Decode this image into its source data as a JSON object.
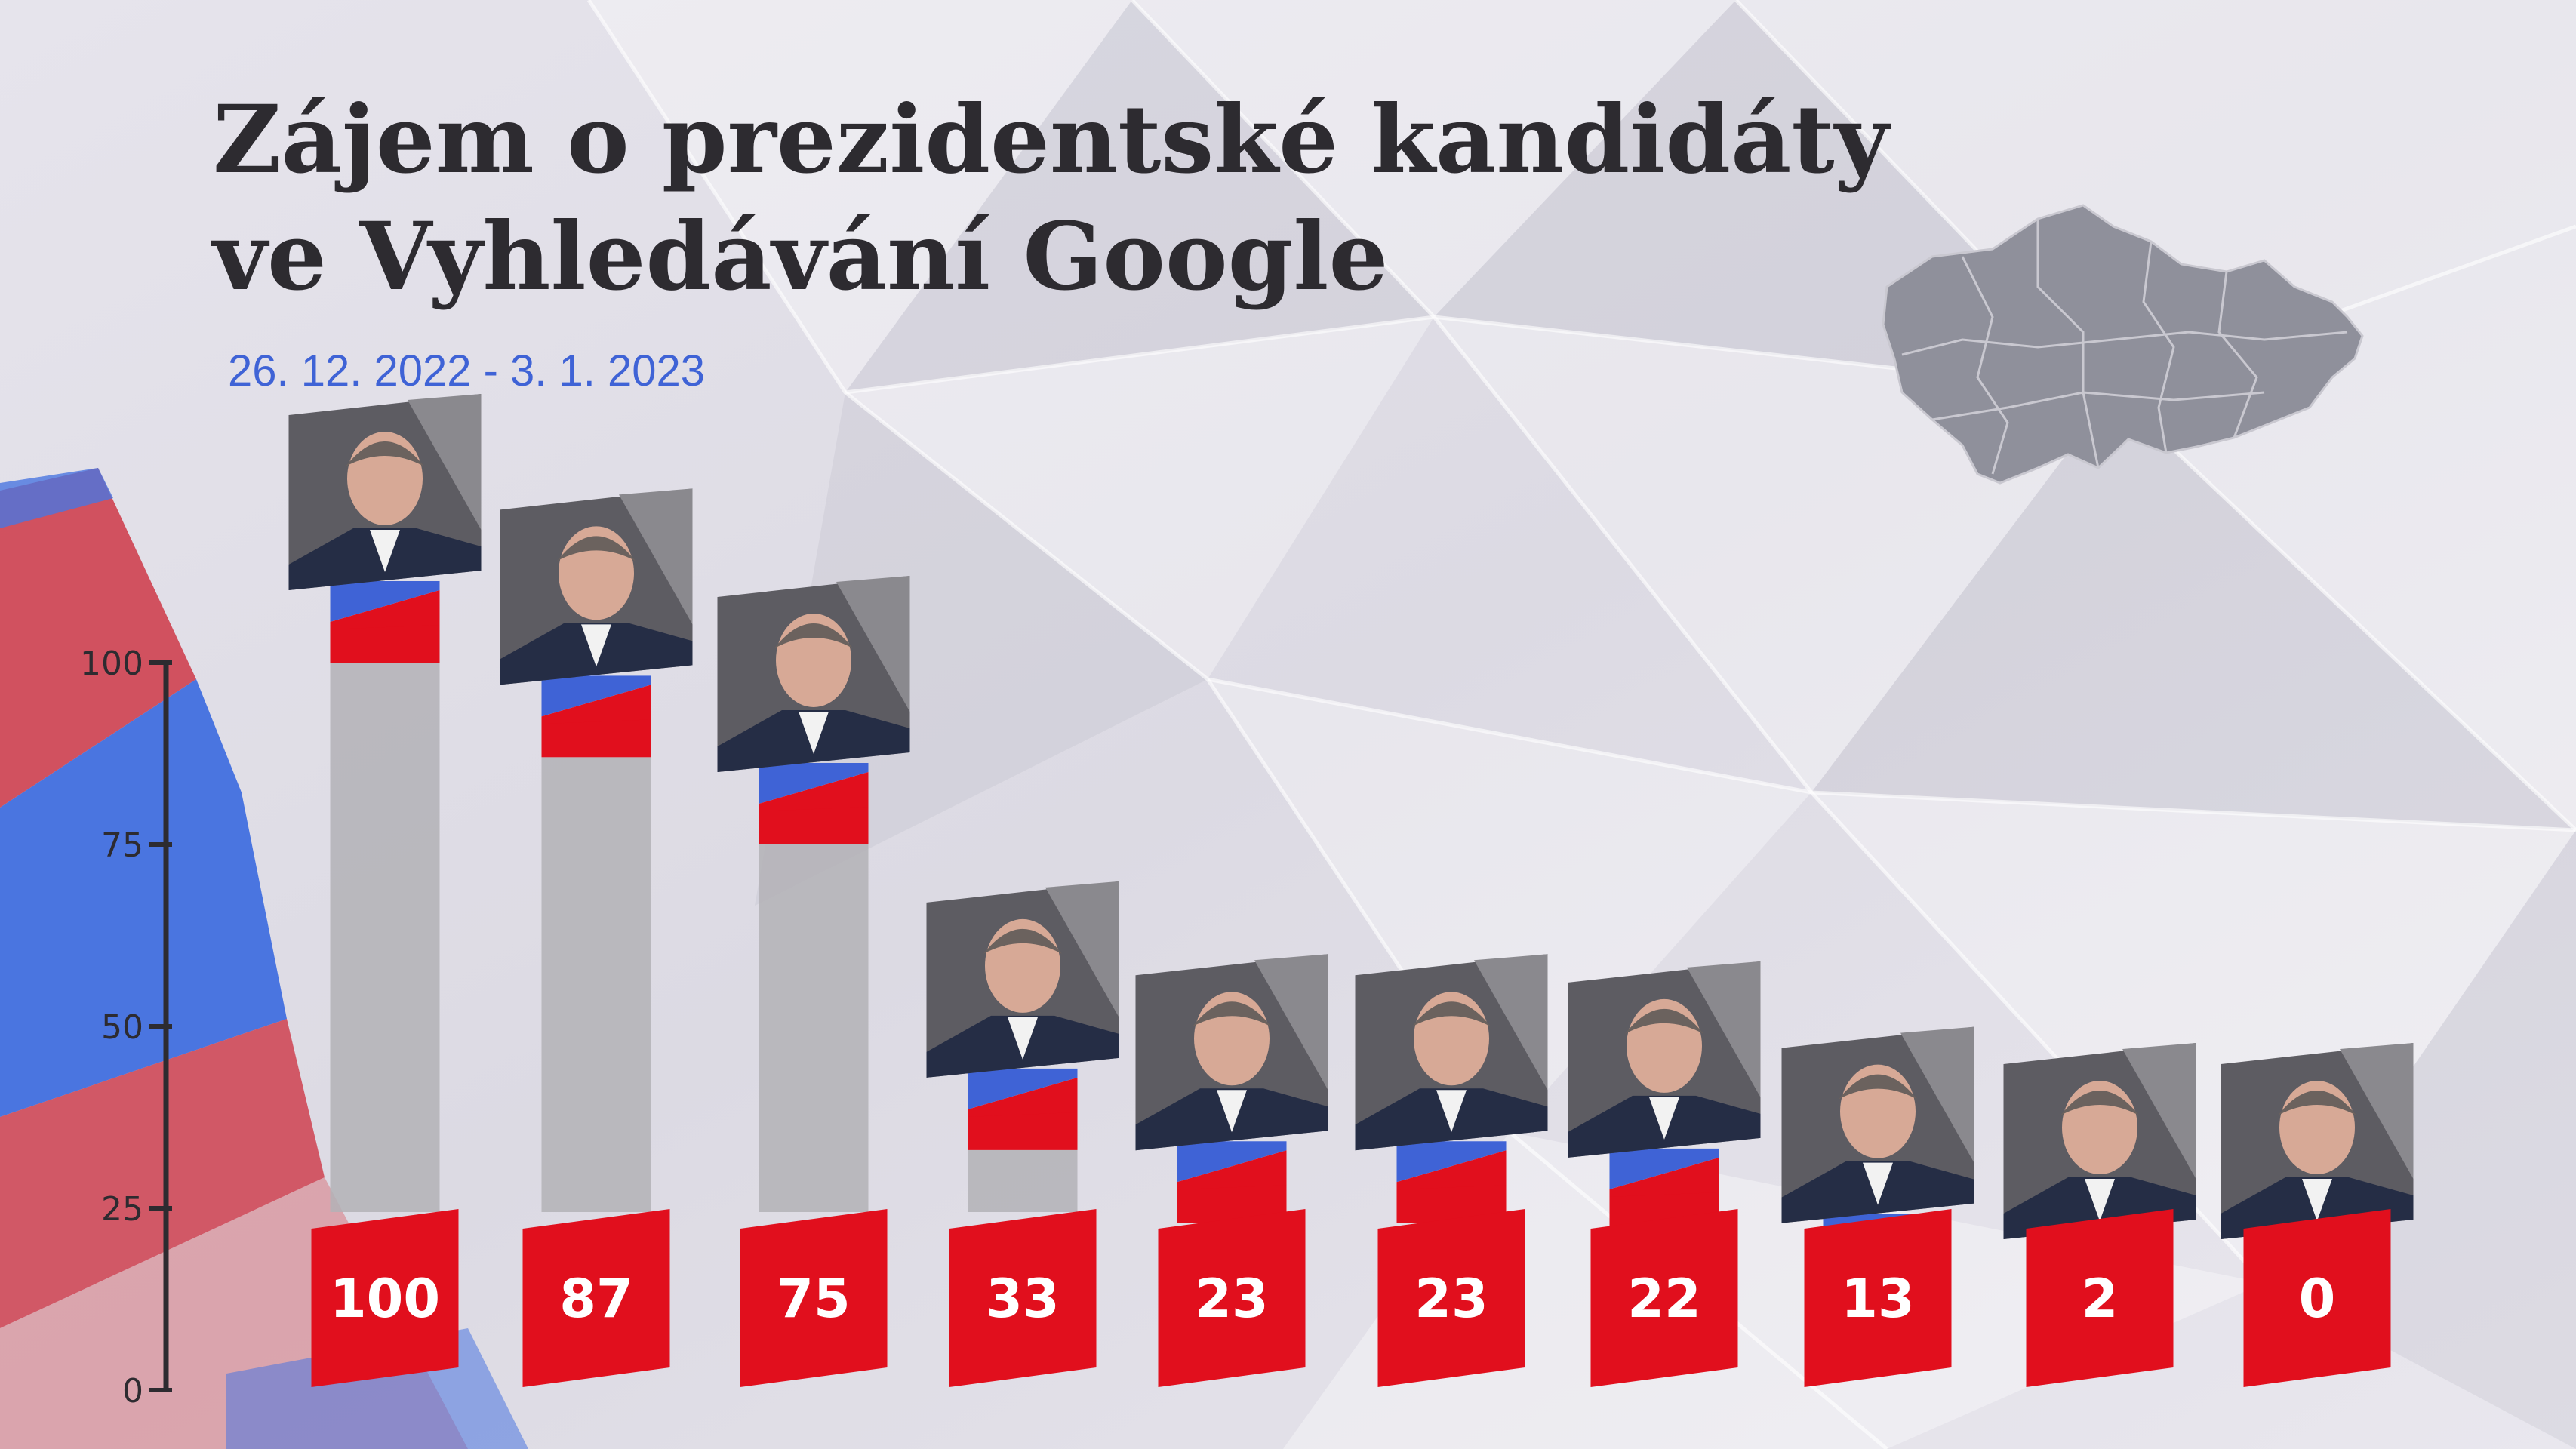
{
  "title_line1": "Zájem o prezidentské kandidáty",
  "title_line2": "ve Vyhledávání Google",
  "subtitle": "26. 12. 2022 - 3. 1. 2023",
  "colors": {
    "red": "#e10f1d",
    "blue": "#3f63d6",
    "white": "#ffffff",
    "bar": "#b3b1b6",
    "text": "#2d2b30"
  },
  "chart_data": {
    "type": "bar",
    "categories": [
      "",
      "",
      "",
      "",
      "",
      "",
      "",
      "",
      "",
      ""
    ],
    "values": [
      100,
      87,
      75,
      33,
      23,
      23,
      22,
      13,
      2,
      0
    ],
    "value_labels": [
      "100",
      "87",
      "75",
      "33",
      "23",
      "23",
      "22",
      "13",
      "2",
      "0"
    ],
    "yticks": [
      0,
      25,
      50,
      75,
      100
    ],
    "ytick_labels": [
      "0",
      "25",
      "50",
      "75",
      "100"
    ],
    "ylim": [
      0,
      100
    ],
    "grid": false,
    "legend": "none"
  }
}
